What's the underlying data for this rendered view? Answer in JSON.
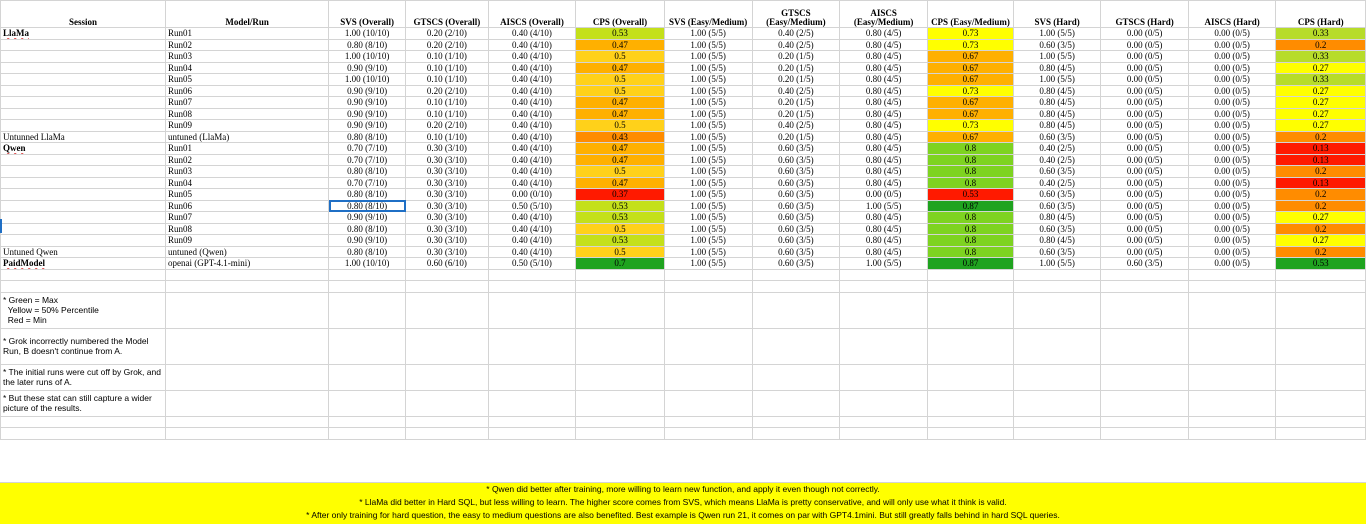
{
  "headers": [
    "Session",
    "Model/Run",
    "SVS (Overall)",
    "GTSCS (Overall)",
    "AISCS (Overall)",
    "CPS (Overall)",
    "SVS (Easy/Medium)",
    "GTSCS (Easy/Medium)",
    "AISCS (Easy/Medium)",
    "CPS (Easy/Medium)",
    "SVS (Hard)",
    "GTSCS (Hard)",
    "AISCS (Hard)",
    "CPS (Hard)"
  ],
  "colors": {
    "green": "#1fa31f",
    "yellow_green": "#c4e01b",
    "yellow": "#ffff00",
    "gold": "#ffd11a",
    "orange": "#ffb000",
    "dark_orange": "#ff8c00",
    "red_orange": "#ff5a00",
    "red": "#ff1a00",
    "light_green": "#7ed321",
    "banner": "#ffff00",
    "selection": "#1f6fc5"
  },
  "rows": [
    {
      "session": "LlaMa",
      "run": "Run01",
      "svs": "1.00 (10/10)",
      "gtscs": "0.20 (2/10)",
      "aiscs": "0.40 (4/10)",
      "cps": "0.53",
      "cps_color": "#c4e01b",
      "svs_em": "1.00 (5/5)",
      "gtscs_em": "0.40 (2/5)",
      "aiscs_em": "0.80 (4/5)",
      "cps_em": "0.73",
      "cps_em_color": "#ffff00",
      "svs_h": "1.00 (5/5)",
      "gtscs_h": "0.00 (0/5)",
      "aiscs_h": "0.00 (0/5)",
      "cps_h": "0.33",
      "cps_h_color": "#b7dc2a"
    },
    {
      "session": "",
      "run": "Run02",
      "svs": "0.80 (8/10)",
      "gtscs": "0.20 (2/10)",
      "aiscs": "0.40 (4/10)",
      "cps": "0.47",
      "cps_color": "#ffb000",
      "svs_em": "1.00 (5/5)",
      "gtscs_em": "0.40 (2/5)",
      "aiscs_em": "0.80 (4/5)",
      "cps_em": "0.73",
      "cps_em_color": "#ffff00",
      "svs_h": "0.60 (3/5)",
      "gtscs_h": "0.00 (0/5)",
      "aiscs_h": "0.00 (0/5)",
      "cps_h": "0.2",
      "cps_h_color": "#ff8c00"
    },
    {
      "session": "",
      "run": "Run03",
      "svs": "1.00 (10/10)",
      "gtscs": "0.10 (1/10)",
      "aiscs": "0.40 (4/10)",
      "cps": "0.5",
      "cps_color": "#ffd11a",
      "svs_em": "1.00 (5/5)",
      "gtscs_em": "0.20 (1/5)",
      "aiscs_em": "0.80 (4/5)",
      "cps_em": "0.67",
      "cps_em_color": "#ffb000",
      "svs_h": "1.00 (5/5)",
      "gtscs_h": "0.00 (0/5)",
      "aiscs_h": "0.00 (0/5)",
      "cps_h": "0.33",
      "cps_h_color": "#b7dc2a"
    },
    {
      "session": "",
      "run": "Run04",
      "svs": "0.90 (9/10)",
      "gtscs": "0.10 (1/10)",
      "aiscs": "0.40 (4/10)",
      "cps": "0.47",
      "cps_color": "#ffb000",
      "svs_em": "1.00 (5/5)",
      "gtscs_em": "0.20 (1/5)",
      "aiscs_em": "0.80 (4/5)",
      "cps_em": "0.67",
      "cps_em_color": "#ffb000",
      "svs_h": "0.80 (4/5)",
      "gtscs_h": "0.00 (0/5)",
      "aiscs_h": "0.00 (0/5)",
      "cps_h": "0.27",
      "cps_h_color": "#ffff00"
    },
    {
      "session": "",
      "run": "Run05",
      "svs": "1.00 (10/10)",
      "gtscs": "0.10 (1/10)",
      "aiscs": "0.40 (4/10)",
      "cps": "0.5",
      "cps_color": "#ffd11a",
      "svs_em": "1.00 (5/5)",
      "gtscs_em": "0.20 (1/5)",
      "aiscs_em": "0.80 (4/5)",
      "cps_em": "0.67",
      "cps_em_color": "#ffb000",
      "svs_h": "1.00 (5/5)",
      "gtscs_h": "0.00 (0/5)",
      "aiscs_h": "0.00 (0/5)",
      "cps_h": "0.33",
      "cps_h_color": "#b7dc2a"
    },
    {
      "session": "",
      "run": "Run06",
      "svs": "0.90 (9/10)",
      "gtscs": "0.20 (2/10)",
      "aiscs": "0.40 (4/10)",
      "cps": "0.5",
      "cps_color": "#ffd11a",
      "svs_em": "1.00 (5/5)",
      "gtscs_em": "0.40 (2/5)",
      "aiscs_em": "0.80 (4/5)",
      "cps_em": "0.73",
      "cps_em_color": "#ffff00",
      "svs_h": "0.80 (4/5)",
      "gtscs_h": "0.00 (0/5)",
      "aiscs_h": "0.00 (0/5)",
      "cps_h": "0.27",
      "cps_h_color": "#ffff00"
    },
    {
      "session": "",
      "run": "Run07",
      "svs": "0.90 (9/10)",
      "gtscs": "0.10 (1/10)",
      "aiscs": "0.40 (4/10)",
      "cps": "0.47",
      "cps_color": "#ffb000",
      "svs_em": "1.00 (5/5)",
      "gtscs_em": "0.20 (1/5)",
      "aiscs_em": "0.80 (4/5)",
      "cps_em": "0.67",
      "cps_em_color": "#ffb000",
      "svs_h": "0.80 (4/5)",
      "gtscs_h": "0.00 (0/5)",
      "aiscs_h": "0.00 (0/5)",
      "cps_h": "0.27",
      "cps_h_color": "#ffff00"
    },
    {
      "session": "",
      "run": "Run08",
      "svs": "0.90 (9/10)",
      "gtscs": "0.10 (1/10)",
      "aiscs": "0.40 (4/10)",
      "cps": "0.47",
      "cps_color": "#ffb000",
      "svs_em": "1.00 (5/5)",
      "gtscs_em": "0.20 (1/5)",
      "aiscs_em": "0.80 (4/5)",
      "cps_em": "0.67",
      "cps_em_color": "#ffb000",
      "svs_h": "0.80 (4/5)",
      "gtscs_h": "0.00 (0/5)",
      "aiscs_h": "0.00 (0/5)",
      "cps_h": "0.27",
      "cps_h_color": "#ffff00"
    },
    {
      "session": "",
      "run": "Run09",
      "svs": "0.90 (9/10)",
      "gtscs": "0.20 (2/10)",
      "aiscs": "0.40 (4/10)",
      "cps": "0.5",
      "cps_color": "#ffd11a",
      "svs_em": "1.00 (5/5)",
      "gtscs_em": "0.40 (2/5)",
      "aiscs_em": "0.80 (4/5)",
      "cps_em": "0.73",
      "cps_em_color": "#ffff00",
      "svs_h": "0.80 (4/5)",
      "gtscs_h": "0.00 (0/5)",
      "aiscs_h": "0.00 (0/5)",
      "cps_h": "0.27",
      "cps_h_color": "#ffff00"
    },
    {
      "session": "Untunned LlaMa",
      "run": "untuned (LlaMa)",
      "svs": "0.80 (8/10)",
      "gtscs": "0.10 (1/10)",
      "aiscs": "0.40 (4/10)",
      "cps": "0.43",
      "cps_color": "#ff8c00",
      "svs_em": "1.00 (5/5)",
      "gtscs_em": "0.20 (1/5)",
      "aiscs_em": "0.80 (4/5)",
      "cps_em": "0.67",
      "cps_em_color": "#ffb000",
      "svs_h": "0.60 (3/5)",
      "gtscs_h": "0.00 (0/5)",
      "aiscs_h": "0.00 (0/5)",
      "cps_h": "0.2",
      "cps_h_color": "#ff8c00"
    },
    {
      "session": "Qwen",
      "run": "Run01",
      "svs": "0.70 (7/10)",
      "gtscs": "0.30 (3/10)",
      "aiscs": "0.40 (4/10)",
      "cps": "0.47",
      "cps_color": "#ffb000",
      "svs_em": "1.00 (5/5)",
      "gtscs_em": "0.60 (3/5)",
      "aiscs_em": "0.80 (4/5)",
      "cps_em": "0.8",
      "cps_em_color": "#7ed321",
      "svs_h": "0.40 (2/5)",
      "gtscs_h": "0.00 (0/5)",
      "aiscs_h": "0.00 (0/5)",
      "cps_h": "0.13",
      "cps_h_color": "#ff1a00"
    },
    {
      "session": "",
      "run": "Run02",
      "svs": "0.70 (7/10)",
      "gtscs": "0.30 (3/10)",
      "aiscs": "0.40 (4/10)",
      "cps": "0.47",
      "cps_color": "#ffb000",
      "svs_em": "1.00 (5/5)",
      "gtscs_em": "0.60 (3/5)",
      "aiscs_em": "0.80 (4/5)",
      "cps_em": "0.8",
      "cps_em_color": "#7ed321",
      "svs_h": "0.40 (2/5)",
      "gtscs_h": "0.00 (0/5)",
      "aiscs_h": "0.00 (0/5)",
      "cps_h": "0.13",
      "cps_h_color": "#ff1a00"
    },
    {
      "session": "",
      "run": "Run03",
      "svs": "0.80 (8/10)",
      "gtscs": "0.30 (3/10)",
      "aiscs": "0.40 (4/10)",
      "cps": "0.5",
      "cps_color": "#ffd11a",
      "svs_em": "1.00 (5/5)",
      "gtscs_em": "0.60 (3/5)",
      "aiscs_em": "0.80 (4/5)",
      "cps_em": "0.8",
      "cps_em_color": "#7ed321",
      "svs_h": "0.60 (3/5)",
      "gtscs_h": "0.00 (0/5)",
      "aiscs_h": "0.00 (0/5)",
      "cps_h": "0.2",
      "cps_h_color": "#ff8c00"
    },
    {
      "session": "",
      "run": "Run04",
      "svs": "0.70 (7/10)",
      "gtscs": "0.30 (3/10)",
      "aiscs": "0.40 (4/10)",
      "cps": "0.47",
      "cps_color": "#ffb000",
      "svs_em": "1.00 (5/5)",
      "gtscs_em": "0.60 (3/5)",
      "aiscs_em": "0.80 (4/5)",
      "cps_em": "0.8",
      "cps_em_color": "#7ed321",
      "svs_h": "0.40 (2/5)",
      "gtscs_h": "0.00 (0/5)",
      "aiscs_h": "0.00 (0/5)",
      "cps_h": "0.13",
      "cps_h_color": "#ff1a00"
    },
    {
      "session": "",
      "run": "Run05",
      "svs": "0.80 (8/10)",
      "gtscs": "0.30 (3/10)",
      "aiscs": "0.00 (0/10)",
      "cps": "0.37",
      "cps_color": "#ff1a00",
      "svs_em": "1.00 (5/5)",
      "gtscs_em": "0.60 (3/5)",
      "aiscs_em": "0.00 (0/5)",
      "cps_em": "0.53",
      "cps_em_color": "#ff1a00",
      "svs_h": "0.60 (3/5)",
      "gtscs_h": "0.00 (0/5)",
      "aiscs_h": "0.00 (0/5)",
      "cps_h": "0.2",
      "cps_h_color": "#ff8c00"
    },
    {
      "session": "",
      "run": "Run06",
      "svs": "0.80 (8/10)",
      "gtscs": "0.30 (3/10)",
      "aiscs": "0.50 (5/10)",
      "cps": "0.53",
      "cps_color": "#c4e01b",
      "svs_em": "1.00 (5/5)",
      "gtscs_em": "0.60 (3/5)",
      "aiscs_em": "1.00 (5/5)",
      "cps_em": "0.87",
      "cps_em_color": "#1fa31f",
      "svs_h": "0.60 (3/5)",
      "gtscs_h": "0.00 (0/5)",
      "aiscs_h": "0.00 (0/5)",
      "cps_h": "0.2",
      "cps_h_color": "#ff8c00",
      "selected": true
    },
    {
      "session": "",
      "run": "Run07",
      "svs": "0.90 (9/10)",
      "gtscs": "0.30 (3/10)",
      "aiscs": "0.40 (4/10)",
      "cps": "0.53",
      "cps_color": "#c4e01b",
      "svs_em": "1.00 (5/5)",
      "gtscs_em": "0.60 (3/5)",
      "aiscs_em": "0.80 (4/5)",
      "cps_em": "0.8",
      "cps_em_color": "#7ed321",
      "svs_h": "0.80 (4/5)",
      "gtscs_h": "0.00 (0/5)",
      "aiscs_h": "0.00 (0/5)",
      "cps_h": "0.27",
      "cps_h_color": "#ffff00"
    },
    {
      "session": "",
      "run": "Run08",
      "svs": "0.80 (8/10)",
      "gtscs": "0.30 (3/10)",
      "aiscs": "0.40 (4/10)",
      "cps": "0.5",
      "cps_color": "#ffd11a",
      "svs_em": "1.00 (5/5)",
      "gtscs_em": "0.60 (3/5)",
      "aiscs_em": "0.80 (4/5)",
      "cps_em": "0.8",
      "cps_em_color": "#7ed321",
      "svs_h": "0.60 (3/5)",
      "gtscs_h": "0.00 (0/5)",
      "aiscs_h": "0.00 (0/5)",
      "cps_h": "0.2",
      "cps_h_color": "#ff8c00"
    },
    {
      "session": "",
      "run": "Run09",
      "svs": "0.90 (9/10)",
      "gtscs": "0.30 (3/10)",
      "aiscs": "0.40 (4/10)",
      "cps": "0.53",
      "cps_color": "#c4e01b",
      "svs_em": "1.00 (5/5)",
      "gtscs_em": "0.60 (3/5)",
      "aiscs_em": "0.80 (4/5)",
      "cps_em": "0.8",
      "cps_em_color": "#7ed321",
      "svs_h": "0.80 (4/5)",
      "gtscs_h": "0.00 (0/5)",
      "aiscs_h": "0.00 (0/5)",
      "cps_h": "0.27",
      "cps_h_color": "#ffff00"
    },
    {
      "session": "Untuned Qwen",
      "run": "untuned (Qwen)",
      "svs": "0.80 (8/10)",
      "gtscs": "0.30 (3/10)",
      "aiscs": "0.40 (4/10)",
      "cps": "0.5",
      "cps_color": "#ffd11a",
      "svs_em": "1.00 (5/5)",
      "gtscs_em": "0.60 (3/5)",
      "aiscs_em": "0.80 (4/5)",
      "cps_em": "0.8",
      "cps_em_color": "#7ed321",
      "svs_h": "0.60 (3/5)",
      "gtscs_h": "0.00 (0/5)",
      "aiscs_h": "0.00 (0/5)",
      "cps_h": "0.2",
      "cps_h_color": "#ff8c00"
    },
    {
      "session": "PaidModel",
      "run": "openai (GPT-4.1-mini)",
      "svs": "1.00 (10/10)",
      "gtscs": "0.60 (6/10)",
      "aiscs": "0.50 (5/10)",
      "cps": "0.7",
      "cps_color": "#1fa31f",
      "svs_em": "1.00 (5/5)",
      "gtscs_em": "0.60 (3/5)",
      "aiscs_em": "1.00 (5/5)",
      "cps_em": "0.87",
      "cps_em_color": "#1fa31f",
      "svs_h": "1.00 (5/5)",
      "gtscs_h": "0.60 (3/5)",
      "aiscs_h": "0.00 (0/5)",
      "cps_h": "0.53",
      "cps_h_color": "#1fa31f"
    }
  ],
  "notes": [
    "* Green = Max\n  Yellow = 50% Percentile\n  Red = Min",
    "* Grok incorrectly numbered the Model Run, B doesn't continue from A.",
    "* The initial runs were cut off by Grok, and the later runs of A.",
    "* But these stat can still capture a wider picture of the results."
  ],
  "banner": [
    "* Qwen did better after training, more willing to learn new function, and apply it even though not correctly.",
    "* LlaMa did better in Hard SQL, but less willing to learn. The higher score comes from SVS, which means LlaMa is pretty conservative, and will only use what it think is valid.",
    "* After only training for hard question, the easy to medium questions are also benefited. Best example is Qwen run 21, it comes on par with GPT4.1mini. But still greatly falls behind in hard SQL queries."
  ]
}
